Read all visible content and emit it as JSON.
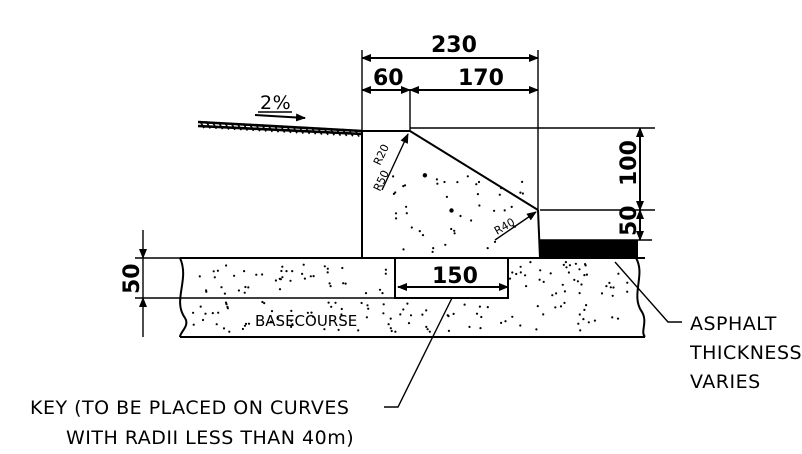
{
  "dimensions": {
    "overall_width": "230",
    "top_left": "60",
    "top_right": "170",
    "kerb_height": "100",
    "lower_height": "50",
    "left_height": "50",
    "key_width": "150"
  },
  "radii": {
    "r20": "R20",
    "r50": "R50",
    "r40": "R40"
  },
  "slope": "2%",
  "labels": {
    "basecourse": "BASECOURSE",
    "asphalt_lines": [
      "ASPHALT",
      "THICKNESS",
      "VARIES"
    ],
    "key_lines": [
      "KEY (TO BE PLACED ON CURVES",
      "WITH RADII LESS THAN 40m)"
    ]
  }
}
